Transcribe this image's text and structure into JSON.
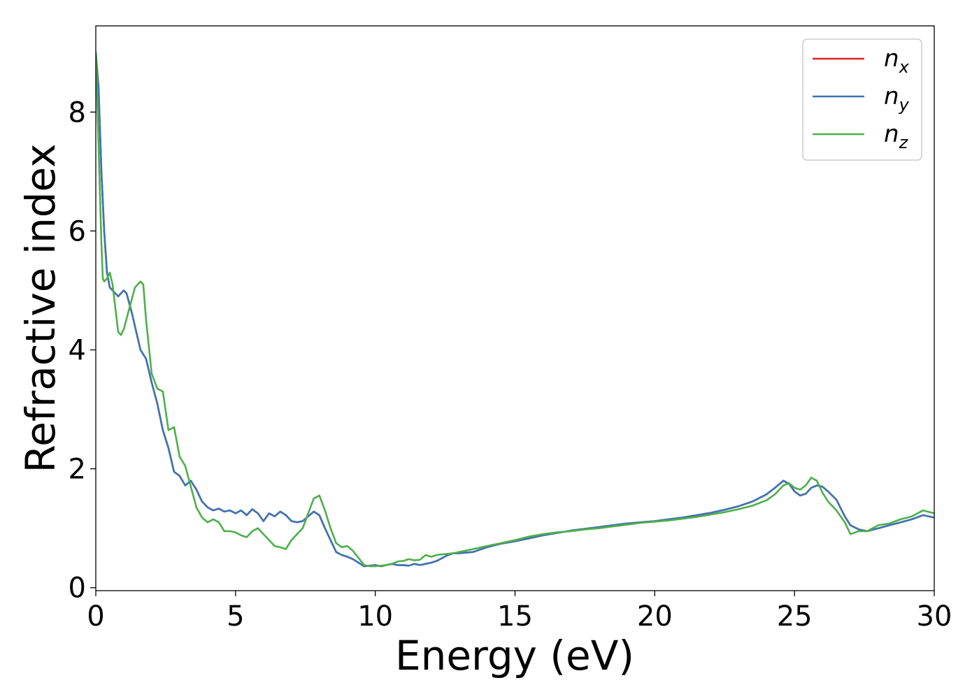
{
  "chart_data": {
    "type": "line",
    "xlabel": "Energy (eV)",
    "ylabel": "Refractive index",
    "xlim": [
      0,
      30
    ],
    "ylim": [
      -0.05,
      9.45
    ],
    "xticks": [
      0,
      5,
      10,
      15,
      20,
      25,
      30
    ],
    "yticks": [
      0,
      2,
      4,
      6,
      8
    ],
    "xtick_labels": [
      "0",
      "5",
      "10",
      "15",
      "20",
      "25",
      "30"
    ],
    "ytick_labels": [
      "0",
      "2",
      "4",
      "6",
      "8"
    ],
    "grid": false,
    "legend_position": "top-right",
    "series": [
      {
        "name": "n_x",
        "label_main": "n",
        "label_sub": "x",
        "color": "#d62728",
        "x": [
          0,
          0.1,
          0.2,
          0.3,
          0.4,
          0.5,
          0.6,
          0.8,
          1.0,
          1.1,
          1.3,
          1.5,
          1.6,
          1.8,
          2.0,
          2.2,
          2.4,
          2.6,
          2.8,
          3.0,
          3.2,
          3.4,
          3.6,
          3.8,
          4.0,
          4.2,
          4.4,
          4.6,
          4.8,
          5.0,
          5.2,
          5.4,
          5.6,
          5.8,
          6.0,
          6.2,
          6.4,
          6.6,
          6.8,
          7.0,
          7.2,
          7.4,
          7.6,
          7.8,
          8.0,
          8.2,
          8.4,
          8.6,
          8.8,
          9.0,
          9.2,
          9.4,
          9.6,
          9.8,
          10.0,
          10.2,
          10.4,
          10.6,
          10.8,
          11.0,
          11.2,
          11.4,
          11.6,
          11.8,
          12.0,
          12.2,
          12.4,
          12.6,
          12.8,
          13.0,
          13.5,
          14.0,
          14.5,
          15.0,
          15.5,
          16.0,
          16.5,
          17.0,
          17.5,
          18.0,
          18.5,
          19.0,
          19.5,
          20.0,
          20.5,
          21.0,
          21.5,
          22.0,
          22.5,
          23.0,
          23.5,
          24.0,
          24.3,
          24.6,
          24.8,
          25.0,
          25.2,
          25.4,
          25.6,
          25.8,
          26.0,
          26.2,
          26.5,
          26.8,
          27.0,
          27.3,
          27.6,
          28.0,
          28.4,
          28.8,
          29.2,
          29.6,
          30.0
        ],
        "y": [
          9.0,
          8.4,
          7.0,
          6.0,
          5.3,
          5.05,
          5.0,
          4.9,
          5.0,
          4.95,
          4.6,
          4.2,
          4.0,
          3.85,
          3.45,
          3.1,
          2.65,
          2.35,
          1.95,
          1.88,
          1.72,
          1.8,
          1.65,
          1.45,
          1.35,
          1.3,
          1.33,
          1.28,
          1.3,
          1.25,
          1.3,
          1.22,
          1.32,
          1.25,
          1.12,
          1.25,
          1.2,
          1.28,
          1.22,
          1.12,
          1.1,
          1.12,
          1.2,
          1.28,
          1.22,
          1.0,
          0.8,
          0.6,
          0.55,
          0.52,
          0.48,
          0.42,
          0.36,
          0.37,
          0.38,
          0.36,
          0.38,
          0.4,
          0.38,
          0.38,
          0.37,
          0.4,
          0.38,
          0.4,
          0.42,
          0.45,
          0.5,
          0.55,
          0.58,
          0.58,
          0.6,
          0.68,
          0.74,
          0.78,
          0.83,
          0.88,
          0.92,
          0.96,
          0.99,
          1.02,
          1.05,
          1.08,
          1.1,
          1.12,
          1.15,
          1.18,
          1.22,
          1.26,
          1.31,
          1.37,
          1.45,
          1.57,
          1.68,
          1.8,
          1.75,
          1.62,
          1.55,
          1.58,
          1.68,
          1.72,
          1.7,
          1.62,
          1.48,
          1.2,
          1.05,
          0.98,
          0.95,
          1.0,
          1.05,
          1.1,
          1.15,
          1.22,
          1.18
        ]
      },
      {
        "name": "n_y",
        "label_main": "n",
        "label_sub": "y",
        "color": "#3a76b4",
        "x": [
          0,
          0.1,
          0.2,
          0.3,
          0.4,
          0.5,
          0.6,
          0.8,
          1.0,
          1.1,
          1.3,
          1.5,
          1.6,
          1.8,
          2.0,
          2.2,
          2.4,
          2.6,
          2.8,
          3.0,
          3.2,
          3.4,
          3.6,
          3.8,
          4.0,
          4.2,
          4.4,
          4.6,
          4.8,
          5.0,
          5.2,
          5.4,
          5.6,
          5.8,
          6.0,
          6.2,
          6.4,
          6.6,
          6.8,
          7.0,
          7.2,
          7.4,
          7.6,
          7.8,
          8.0,
          8.2,
          8.4,
          8.6,
          8.8,
          9.0,
          9.2,
          9.4,
          9.6,
          9.8,
          10.0,
          10.2,
          10.4,
          10.6,
          10.8,
          11.0,
          11.2,
          11.4,
          11.6,
          11.8,
          12.0,
          12.2,
          12.4,
          12.6,
          12.8,
          13.0,
          13.5,
          14.0,
          14.5,
          15.0,
          15.5,
          16.0,
          16.5,
          17.0,
          17.5,
          18.0,
          18.5,
          19.0,
          19.5,
          20.0,
          20.5,
          21.0,
          21.5,
          22.0,
          22.5,
          23.0,
          23.5,
          24.0,
          24.3,
          24.6,
          24.8,
          25.0,
          25.2,
          25.4,
          25.6,
          25.8,
          26.0,
          26.2,
          26.5,
          26.8,
          27.0,
          27.3,
          27.6,
          28.0,
          28.4,
          28.8,
          29.2,
          29.6,
          30.0
        ],
        "y": [
          9.0,
          8.4,
          7.0,
          6.0,
          5.3,
          5.05,
          5.0,
          4.9,
          5.0,
          4.95,
          4.6,
          4.2,
          4.0,
          3.85,
          3.45,
          3.1,
          2.65,
          2.35,
          1.95,
          1.88,
          1.72,
          1.8,
          1.65,
          1.45,
          1.35,
          1.3,
          1.33,
          1.28,
          1.3,
          1.25,
          1.3,
          1.22,
          1.32,
          1.25,
          1.12,
          1.25,
          1.2,
          1.28,
          1.22,
          1.12,
          1.1,
          1.12,
          1.2,
          1.28,
          1.22,
          1.0,
          0.8,
          0.6,
          0.55,
          0.52,
          0.48,
          0.42,
          0.36,
          0.37,
          0.38,
          0.36,
          0.38,
          0.4,
          0.38,
          0.38,
          0.37,
          0.4,
          0.38,
          0.4,
          0.42,
          0.45,
          0.5,
          0.55,
          0.58,
          0.58,
          0.6,
          0.68,
          0.74,
          0.78,
          0.83,
          0.88,
          0.92,
          0.96,
          0.99,
          1.02,
          1.05,
          1.08,
          1.1,
          1.12,
          1.15,
          1.18,
          1.22,
          1.26,
          1.31,
          1.37,
          1.45,
          1.57,
          1.68,
          1.8,
          1.75,
          1.62,
          1.55,
          1.58,
          1.68,
          1.72,
          1.7,
          1.62,
          1.48,
          1.2,
          1.05,
          0.98,
          0.95,
          1.0,
          1.05,
          1.1,
          1.15,
          1.22,
          1.18
        ]
      },
      {
        "name": "n_z",
        "label_main": "n",
        "label_sub": "z",
        "color": "#4daf4a",
        "x": [
          0,
          0.1,
          0.2,
          0.25,
          0.3,
          0.4,
          0.5,
          0.6,
          0.7,
          0.8,
          0.9,
          1.0,
          1.2,
          1.4,
          1.6,
          1.7,
          1.8,
          2.0,
          2.2,
          2.4,
          2.6,
          2.8,
          3.0,
          3.2,
          3.4,
          3.6,
          3.8,
          4.0,
          4.2,
          4.4,
          4.6,
          4.8,
          5.0,
          5.2,
          5.4,
          5.6,
          5.8,
          6.0,
          6.2,
          6.4,
          6.6,
          6.8,
          7.0,
          7.2,
          7.4,
          7.6,
          7.8,
          8.0,
          8.2,
          8.4,
          8.6,
          8.8,
          9.0,
          9.2,
          9.4,
          9.6,
          9.8,
          10.0,
          10.2,
          10.4,
          10.6,
          10.8,
          11.0,
          11.2,
          11.4,
          11.6,
          11.8,
          12.0,
          12.2,
          12.4,
          12.6,
          12.8,
          13.0,
          13.5,
          14.0,
          14.5,
          15.0,
          15.5,
          16.0,
          16.5,
          17.0,
          17.5,
          18.0,
          18.5,
          19.0,
          19.5,
          20.0,
          20.5,
          21.0,
          21.5,
          22.0,
          22.5,
          23.0,
          23.5,
          24.0,
          24.3,
          24.6,
          24.8,
          25.0,
          25.2,
          25.4,
          25.6,
          25.8,
          26.0,
          26.2,
          26.5,
          26.8,
          27.0,
          27.3,
          27.6,
          28.0,
          28.4,
          28.8,
          29.2,
          29.6,
          30.0
        ],
        "y": [
          9.0,
          7.4,
          5.8,
          5.2,
          5.15,
          5.2,
          5.3,
          5.1,
          4.7,
          4.3,
          4.25,
          4.35,
          4.7,
          5.05,
          5.15,
          5.1,
          4.5,
          3.6,
          3.35,
          3.3,
          2.65,
          2.7,
          2.2,
          2.05,
          1.7,
          1.35,
          1.18,
          1.1,
          1.15,
          1.1,
          0.95,
          0.95,
          0.93,
          0.88,
          0.85,
          0.95,
          1.0,
          0.9,
          0.8,
          0.7,
          0.68,
          0.65,
          0.8,
          0.9,
          1.0,
          1.25,
          1.5,
          1.55,
          1.3,
          1.0,
          0.75,
          0.68,
          0.7,
          0.62,
          0.5,
          0.38,
          0.36,
          0.36,
          0.37,
          0.38,
          0.4,
          0.44,
          0.45,
          0.48,
          0.46,
          0.47,
          0.55,
          0.52,
          0.55,
          0.56,
          0.57,
          0.58,
          0.6,
          0.65,
          0.7,
          0.75,
          0.8,
          0.86,
          0.9,
          0.93,
          0.95,
          0.98,
          1.0,
          1.03,
          1.06,
          1.09,
          1.11,
          1.13,
          1.16,
          1.19,
          1.23,
          1.27,
          1.32,
          1.38,
          1.47,
          1.57,
          1.72,
          1.76,
          1.68,
          1.65,
          1.72,
          1.85,
          1.8,
          1.6,
          1.45,
          1.3,
          1.1,
          0.9,
          0.95,
          0.95,
          1.05,
          1.08,
          1.15,
          1.2,
          1.3,
          1.25
        ]
      }
    ]
  }
}
